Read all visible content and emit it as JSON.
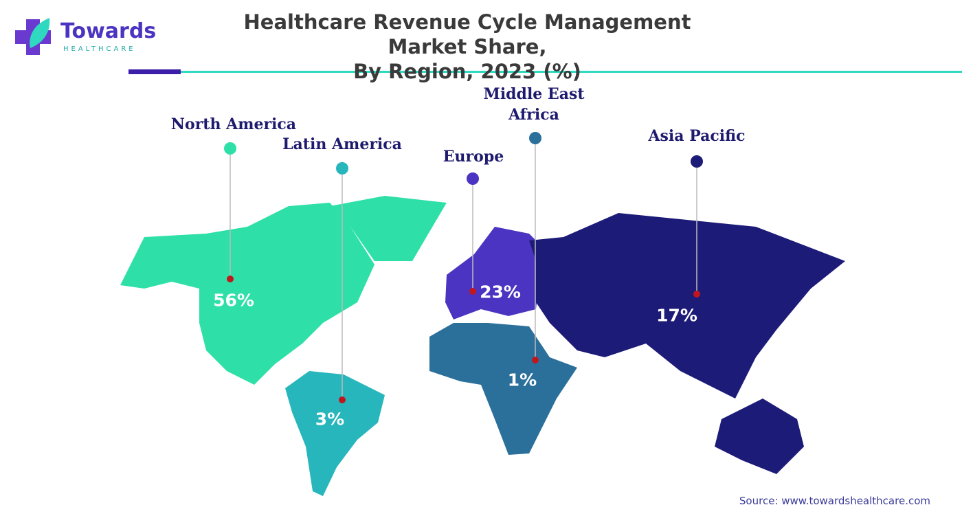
{
  "logo": {
    "name": "Towards",
    "tagline": "HEALTHCARE"
  },
  "chart_data": {
    "type": "map",
    "title": "Healthcare Revenue Cycle Management Market Share,\nBy Region, 2023 (%)",
    "categories": [
      "North America",
      "Latin America",
      "Europe",
      "Middle East\nAfrica",
      "Asia Pacific"
    ],
    "values": [
      56,
      3,
      23,
      1,
      17
    ],
    "value_labels": [
      "56%",
      "3%",
      "23%",
      "1%",
      "17%"
    ],
    "colors": [
      "#2ee0a8",
      "#27b6bb",
      "#4b34c1",
      "#2b6f9b",
      "#1d1b78"
    ]
  },
  "source": "Source: www.towardshealthcare.com"
}
